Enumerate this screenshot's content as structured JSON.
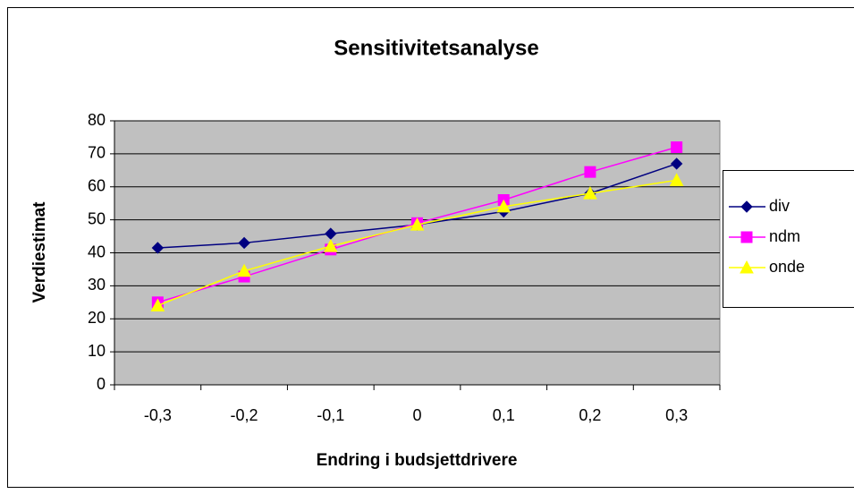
{
  "chart_data": {
    "type": "line",
    "title": "Sensitivitetsanalyse",
    "x_label": "Endring i budsjettdrivere",
    "y_label": "Verdiestimat",
    "categories": [
      "-0,3",
      "-0,2",
      "-0,1",
      "0",
      "0,1",
      "0,2",
      "0,3"
    ],
    "series": [
      {
        "name": "div",
        "color": "#000080",
        "marker": "diamond",
        "values": [
          41.5,
          43,
          45.8,
          48.5,
          52.5,
          58,
          67
        ]
      },
      {
        "name": "ndm",
        "color": "#ff00ff",
        "marker": "square",
        "values": [
          25,
          32.8,
          41,
          49,
          56,
          64.5,
          72
        ]
      },
      {
        "name": "onde",
        "color": "#ffff00",
        "marker": "triangle",
        "values": [
          24,
          34.5,
          42,
          48.5,
          54,
          58,
          62
        ]
      }
    ],
    "ylim": [
      0,
      80
    ],
    "yticks": [
      0,
      10,
      20,
      30,
      40,
      50,
      60,
      70,
      80
    ],
    "grid": true,
    "plot_background": "#c0c0c0",
    "legend": "right"
  }
}
